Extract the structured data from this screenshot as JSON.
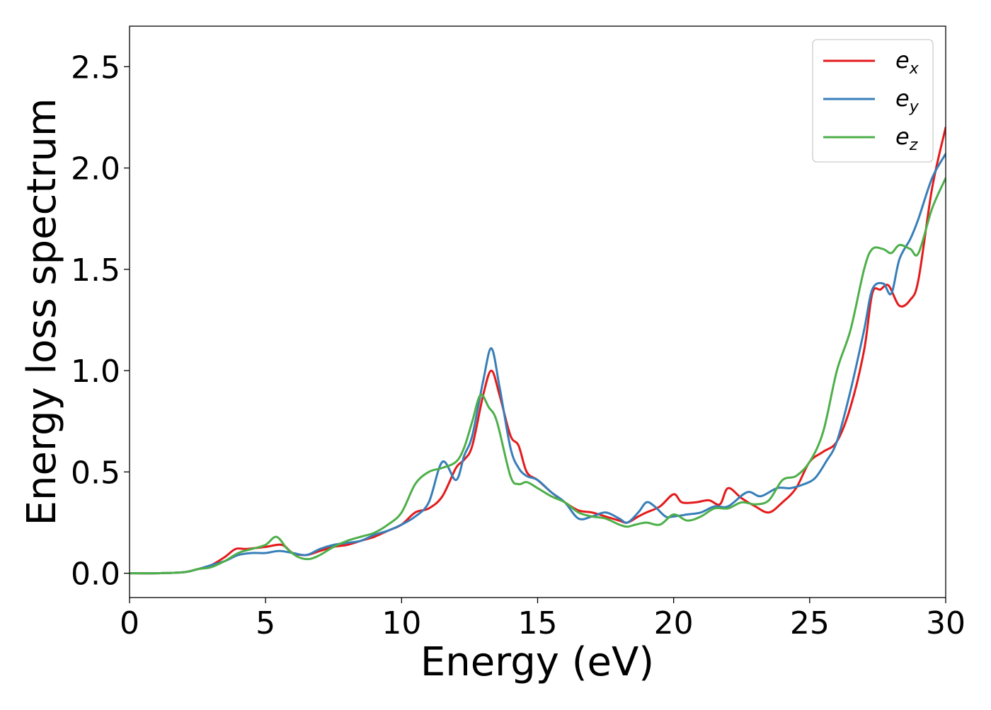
{
  "chart_data": {
    "type": "line",
    "title": "",
    "xlabel": "Energy (eV)",
    "ylabel": "Energy loss spectrum",
    "xlim": [
      0,
      30
    ],
    "ylim": [
      -0.12,
      2.7
    ],
    "xticks": [
      0,
      5,
      10,
      15,
      20,
      25,
      30
    ],
    "xtick_labels": [
      "0",
      "5",
      "10",
      "15",
      "20",
      "25",
      "30"
    ],
    "yticks": [
      0.0,
      0.5,
      1.0,
      1.5,
      2.0,
      2.5
    ],
    "ytick_labels": [
      "0.0",
      "0.5",
      "1.0",
      "1.5",
      "2.0",
      "2.5"
    ],
    "grid": false,
    "legend_position": "top-right",
    "series": [
      {
        "name": "e_x",
        "label_main": "e",
        "label_sub": "x",
        "color": "#e41a1c",
        "x": [
          0,
          1,
          2,
          2.5,
          3,
          3.5,
          3.9,
          4.3,
          5,
          5.6,
          6,
          6.5,
          7,
          7.5,
          8,
          8.5,
          9,
          9.5,
          10,
          10.5,
          11,
          11.5,
          12,
          12.3,
          12.6,
          13,
          13.3,
          13.6,
          14,
          14.3,
          14.6,
          15,
          15.5,
          16,
          16.5,
          17,
          17.5,
          18,
          18.3,
          18.7,
          19,
          19.5,
          20,
          20.3,
          20.8,
          21.3,
          21.7,
          22,
          22.5,
          23,
          23.5,
          24,
          24.5,
          25,
          25.5,
          26,
          26.5,
          27,
          27.3,
          27.6,
          27.9,
          28.3,
          28.7,
          29,
          29.5,
          30
        ],
        "y": [
          0,
          0,
          0.005,
          0.02,
          0.04,
          0.08,
          0.12,
          0.12,
          0.13,
          0.14,
          0.1,
          0.09,
          0.11,
          0.13,
          0.14,
          0.16,
          0.18,
          0.21,
          0.24,
          0.3,
          0.32,
          0.38,
          0.52,
          0.56,
          0.63,
          0.88,
          1.0,
          0.88,
          0.68,
          0.63,
          0.5,
          0.46,
          0.4,
          0.35,
          0.31,
          0.3,
          0.28,
          0.26,
          0.25,
          0.28,
          0.3,
          0.33,
          0.39,
          0.35,
          0.35,
          0.36,
          0.34,
          0.42,
          0.37,
          0.33,
          0.3,
          0.35,
          0.42,
          0.55,
          0.6,
          0.65,
          0.82,
          1.1,
          1.38,
          1.4,
          1.42,
          1.32,
          1.35,
          1.45,
          1.9,
          2.2
        ]
      },
      {
        "name": "e_y",
        "label_main": "e",
        "label_sub": "y",
        "color": "#377eb8",
        "x": [
          0,
          1,
          2,
          2.5,
          3,
          3.5,
          4,
          4.5,
          5,
          5.5,
          6,
          6.5,
          7,
          7.5,
          8,
          8.5,
          9,
          9.5,
          10,
          10.5,
          11,
          11.5,
          12,
          12.3,
          12.6,
          13,
          13.3,
          13.6,
          14,
          14.3,
          14.6,
          15,
          15.5,
          16,
          16.5,
          17,
          17.5,
          18,
          18.3,
          18.7,
          19,
          19.3,
          19.7,
          20,
          20.5,
          21,
          21.5,
          22,
          22.7,
          23.2,
          23.8,
          24.3,
          24.8,
          25.2,
          25.6,
          26,
          26.5,
          27,
          27.3,
          27.7,
          28,
          28.3,
          28.7,
          29,
          29.5,
          30
        ],
        "y": [
          0,
          0,
          0.005,
          0.02,
          0.04,
          0.06,
          0.09,
          0.1,
          0.1,
          0.11,
          0.1,
          0.09,
          0.12,
          0.14,
          0.15,
          0.16,
          0.19,
          0.21,
          0.24,
          0.28,
          0.35,
          0.55,
          0.46,
          0.58,
          0.68,
          0.95,
          1.11,
          0.92,
          0.62,
          0.52,
          0.48,
          0.46,
          0.4,
          0.35,
          0.27,
          0.28,
          0.3,
          0.27,
          0.25,
          0.3,
          0.35,
          0.33,
          0.28,
          0.28,
          0.29,
          0.3,
          0.33,
          0.33,
          0.4,
          0.38,
          0.42,
          0.42,
          0.44,
          0.47,
          0.55,
          0.65,
          0.9,
          1.2,
          1.4,
          1.43,
          1.38,
          1.55,
          1.65,
          1.75,
          1.95,
          2.07
        ]
      },
      {
        "name": "e_z",
        "label_main": "e",
        "label_sub": "z",
        "color": "#4daf4a",
        "x": [
          0,
          1,
          2,
          2.5,
          3,
          3.5,
          4,
          4.5,
          5,
          5.4,
          5.8,
          6.2,
          6.6,
          7,
          7.5,
          8,
          8.5,
          9,
          9.5,
          10,
          10.5,
          11,
          11.5,
          12,
          12.3,
          12.6,
          12.9,
          13.2,
          13.5,
          14,
          14.3,
          14.6,
          15,
          15.5,
          16,
          16.5,
          17,
          17.5,
          18,
          18.3,
          18.6,
          19,
          19.5,
          20,
          20.5,
          21,
          21.5,
          22,
          22.5,
          23,
          23.5,
          24,
          24.5,
          25,
          25.5,
          26,
          26.5,
          27,
          27.3,
          27.7,
          28,
          28.3,
          28.7,
          29,
          29.5,
          30
        ],
        "y": [
          0,
          0,
          0.005,
          0.02,
          0.03,
          0.06,
          0.1,
          0.12,
          0.14,
          0.18,
          0.12,
          0.08,
          0.07,
          0.09,
          0.13,
          0.16,
          0.18,
          0.2,
          0.24,
          0.3,
          0.44,
          0.5,
          0.52,
          0.55,
          0.62,
          0.75,
          0.88,
          0.82,
          0.75,
          0.48,
          0.44,
          0.45,
          0.42,
          0.38,
          0.35,
          0.3,
          0.28,
          0.27,
          0.24,
          0.23,
          0.24,
          0.25,
          0.24,
          0.29,
          0.26,
          0.28,
          0.32,
          0.32,
          0.35,
          0.34,
          0.36,
          0.46,
          0.48,
          0.55,
          0.7,
          1.0,
          1.2,
          1.5,
          1.6,
          1.6,
          1.58,
          1.62,
          1.6,
          1.58,
          1.8,
          1.95
        ]
      }
    ]
  }
}
